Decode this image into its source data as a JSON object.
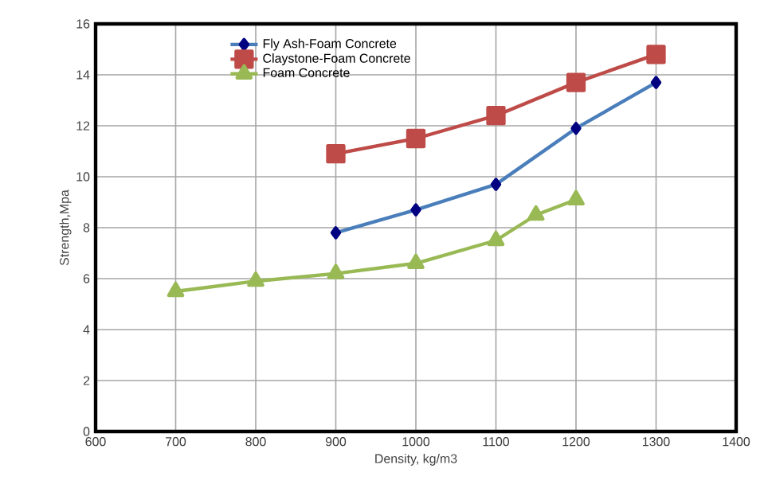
{
  "chart_data": {
    "type": "line",
    "xlabel": "Density, kg/m3",
    "ylabel": "Strength,Mpa",
    "xlim": [
      600,
      1400
    ],
    "xticks": [
      600,
      700,
      800,
      900,
      1000,
      1100,
      1200,
      1300,
      1400
    ],
    "ylim": [
      0,
      16
    ],
    "yticks": [
      0,
      2,
      4,
      6,
      8,
      10,
      12,
      14,
      16
    ],
    "grid": true,
    "legend": "top left",
    "series": [
      {
        "name": "Fly Ash-Foam Concrete",
        "color": "#4a7ebb",
        "marker": "diamond",
        "x": [
          900,
          1000,
          1100,
          1200,
          1300
        ],
        "values": [
          7.8,
          8.7,
          9.7,
          11.9,
          13.7
        ]
      },
      {
        "name": "Claystone-Foam Concrete",
        "color": "#be4b48",
        "marker": "square",
        "x": [
          900,
          1000,
          1100,
          1200,
          1300
        ],
        "values": [
          10.9,
          11.5,
          12.4,
          13.7,
          14.8
        ]
      },
      {
        "name": "Foam Concrete",
        "color": "#98b954",
        "marker": "triangle",
        "x": [
          700,
          800,
          900,
          1000,
          1100,
          1150,
          1200
        ],
        "values": [
          5.5,
          5.9,
          6.2,
          6.6,
          7.5,
          8.5,
          9.1
        ]
      }
    ]
  }
}
